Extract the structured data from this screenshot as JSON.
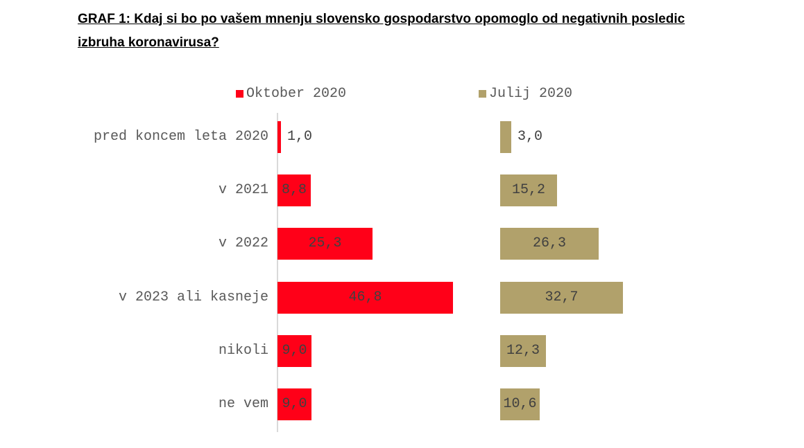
{
  "title": "GRAF 1: Kdaj si bo po vašem mnenju slovensko gospodarstvo opomoglo od negativnih posledic izbruha koronavirusa?",
  "colors": {
    "series_oktober": "#ff0018",
    "series_julij": "#b1a16b",
    "category_label": "#595959",
    "value_label": "#404040",
    "axis_line": "#d9d9d9"
  },
  "chart_data": {
    "type": "bar",
    "orientation": "horizontal",
    "title": "GRAF 1: Kdaj si bo po vašem mnenju slovensko gospodarstvo opomoglo od negativnih posledic izbruha koronavirusa?",
    "categories": [
      "pred koncem leta 2020",
      "v 2021",
      "v 2022",
      "v 2023 ali kasneje",
      "nikoli",
      "ne vem"
    ],
    "series": [
      {
        "name": "Oktober 2020",
        "color": "#ff0018",
        "values": [
          1.0,
          8.8,
          25.3,
          46.8,
          9.0,
          9.0
        ],
        "labels": [
          "1,0",
          "8,8",
          "25,3",
          "46,8",
          "9,0",
          "9,0"
        ]
      },
      {
        "name": "Julij 2020",
        "color": "#b1a16b",
        "values": [
          3.0,
          15.2,
          26.3,
          32.7,
          12.3,
          10.6
        ],
        "labels": [
          "3,0",
          "15,2",
          "26,3",
          "32,7",
          "12,3",
          "10,6"
        ]
      }
    ],
    "value_format": "decimal-comma, one decimal place",
    "xlim": [
      0,
      50
    ],
    "grid": false,
    "legend_position": "top",
    "notes": "Two side-by-side bar panels sharing category axis; left panel (Oktober 2020) has a light gray vertical baseline, right panel (Julij 2020) has none; value labels centered inside bars, placed outside bar end when bar too short"
  }
}
